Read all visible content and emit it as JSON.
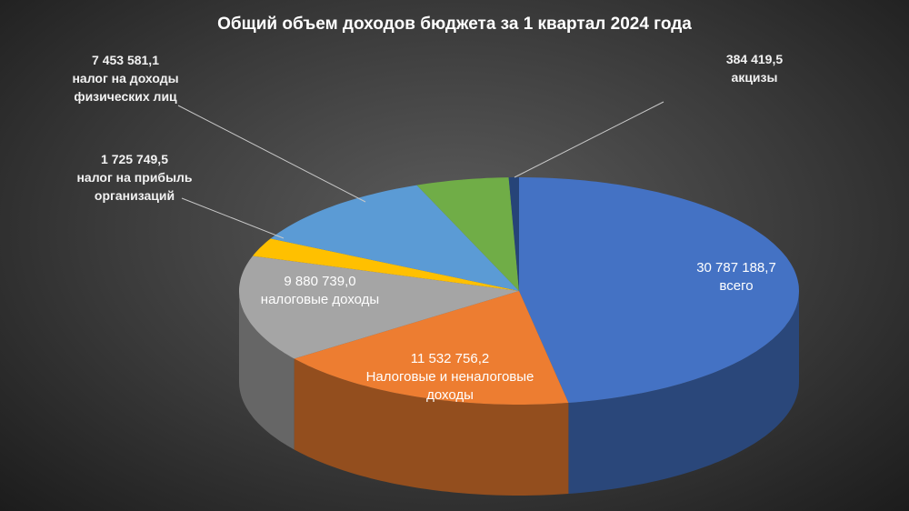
{
  "chart_data": {
    "type": "pie",
    "title": "Общий объем доходов бюджета за 1 квартал 2024 года",
    "categories": [
      "всего",
      "Налоговые и неналоговые доходы",
      "налоговые доходы",
      "налог на прибыль организаций",
      "налог на доходы физических лиц",
      null,
      "акцизы"
    ],
    "values": [
      30787188.7,
      11532756.2,
      9880739.0,
      1725749.5,
      7453581.1,
      3500000,
      384419.5
    ],
    "value_labels": [
      "30 787 188,7",
      "11 532 756,2",
      "9 880 739,0",
      "1 725 749,5",
      "7 453 581,1",
      null,
      "384 419,5"
    ],
    "colors": [
      "#4472c4",
      "#ed7d31",
      "#a5a5a5",
      "#ffc000",
      "#5b9bd5",
      "#70ad47",
      "#264478"
    ]
  }
}
